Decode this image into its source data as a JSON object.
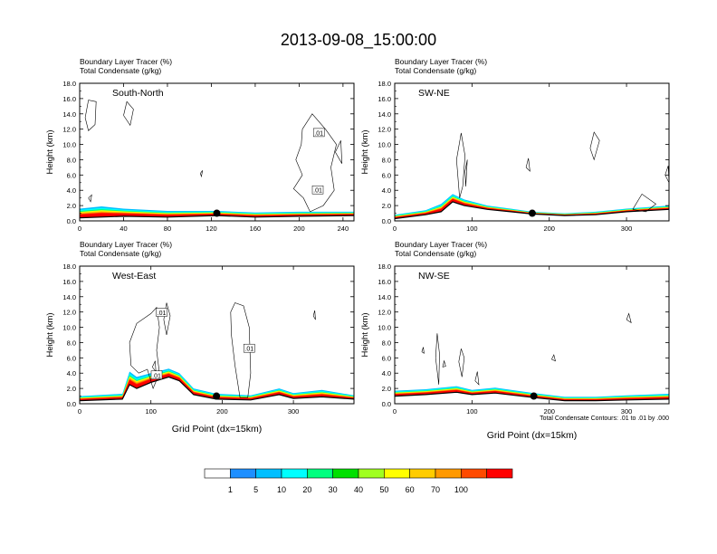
{
  "figure_title": "2013-09-08_15:00:00",
  "footnote": "Total Condensate Contours: .01 to .01 by .000",
  "colorbar": {
    "labels": [
      "1",
      "5",
      "10",
      "20",
      "30",
      "40",
      "50",
      "60",
      "70",
      "100"
    ],
    "colors": [
      "#ffffff",
      "#1e8fff",
      "#00bfff",
      "#00ffff",
      "#00ff7f",
      "#00e000",
      "#a0ff20",
      "#ffff00",
      "#ffcc00",
      "#ff9900",
      "#ff4a00",
      "#ff0000"
    ]
  },
  "chart_data": [
    {
      "type": "contour",
      "panel_label": "South-North",
      "title_line1": "Boundary Layer Tracer   (%)",
      "title_line2": "Total Condensate   (g/kg)",
      "ylabel": "Height (km)",
      "xlabel": "",
      "xlim": [
        0,
        250
      ],
      "ylim": [
        0,
        18
      ],
      "xticks": [
        0,
        40,
        80,
        120,
        160,
        200,
        240
      ],
      "xticklabels": [
        "0",
        "40",
        "80",
        "120",
        "160",
        "200",
        "240"
      ],
      "yticks": [
        0,
        2,
        4,
        6,
        8,
        10,
        12,
        14,
        16,
        18
      ],
      "yticklabels": [
        "0.0",
        "2.0",
        "4.0",
        "6.0",
        "8.0",
        "10.0",
        "12.0",
        "14.0",
        "16.0",
        "18.0"
      ],
      "marker": [
        125,
        1.0
      ],
      "contour_labels": [
        {
          "text": ".01",
          "x": 218,
          "y": 11.5
        },
        {
          "text": ".01",
          "x": 217,
          "y": 4.0
        }
      ],
      "terrain": [
        [
          0,
          0.4
        ],
        [
          40,
          0.6
        ],
        [
          80,
          0.5
        ],
        [
          125,
          0.7
        ],
        [
          160,
          0.5
        ],
        [
          200,
          0.6
        ],
        [
          250,
          0.7
        ]
      ],
      "tracer_top": [
        [
          0,
          1.6
        ],
        [
          20,
          1.9
        ],
        [
          40,
          1.6
        ],
        [
          80,
          1.3
        ],
        [
          125,
          1.3
        ],
        [
          160,
          1.1
        ],
        [
          200,
          1.2
        ],
        [
          250,
          1.2
        ]
      ],
      "condensate_contours": [
        [
          [
            5,
            13.5
          ],
          [
            8,
            15.8
          ],
          [
            15,
            15.6
          ],
          [
            14,
            12.6
          ],
          [
            8,
            11.8
          ],
          [
            5,
            13.5
          ]
        ],
        [
          [
            40,
            13.8
          ],
          [
            43,
            15.6
          ],
          [
            49,
            14.6
          ],
          [
            46,
            12.5
          ],
          [
            40,
            13.8
          ]
        ],
        [
          [
            203,
            12.0
          ],
          [
            212,
            14.0
          ],
          [
            224,
            12.0
          ],
          [
            234,
            10.0
          ],
          [
            229,
            7.0
          ],
          [
            232,
            4.0
          ],
          [
            222,
            2.0
          ],
          [
            210,
            1.2
          ],
          [
            204,
            3.0
          ],
          [
            195,
            4.2
          ],
          [
            203,
            6.0
          ],
          [
            197,
            8.0
          ],
          [
            202,
            10.0
          ],
          [
            203,
            12.0
          ]
        ],
        [
          [
            233,
            9.0
          ],
          [
            238,
            10.5
          ],
          [
            239,
            7.5
          ],
          [
            233,
            9.0
          ]
        ],
        [
          [
            110,
            6.2
          ],
          [
            112,
            6.6
          ],
          [
            111,
            5.8
          ],
          [
            110,
            6.2
          ]
        ],
        [
          [
            8,
            3.0
          ],
          [
            11,
            3.4
          ],
          [
            10,
            2.5
          ],
          [
            8,
            3.0
          ]
        ]
      ]
    },
    {
      "type": "contour",
      "panel_label": "SW-NE",
      "title_line1": "Boundary Layer Tracer   (%)",
      "title_line2": "Total Condensate   (g/kg)",
      "ylabel": "Height (km)",
      "xlabel": "",
      "xlim": [
        0,
        355
      ],
      "ylim": [
        0,
        18
      ],
      "xticks": [
        0,
        100,
        200,
        300
      ],
      "xticklabels": [
        "0",
        "100",
        "200",
        "300"
      ],
      "yticks": [
        0,
        2,
        4,
        6,
        8,
        10,
        12,
        14,
        16,
        18
      ],
      "yticklabels": [
        "0.0",
        "2.0",
        "4.0",
        "6.0",
        "8.0",
        "10.0",
        "12.0",
        "14.0",
        "16.0",
        "18.0"
      ],
      "marker": [
        178,
        1.0
      ],
      "contour_labels": [],
      "terrain": [
        [
          0,
          0.3
        ],
        [
          40,
          0.8
        ],
        [
          60,
          1.2
        ],
        [
          75,
          2.5
        ],
        [
          90,
          2.0
        ],
        [
          120,
          1.5
        ],
        [
          150,
          1.2
        ],
        [
          178,
          0.9
        ],
        [
          220,
          0.7
        ],
        [
          260,
          0.8
        ],
        [
          300,
          1.2
        ],
        [
          355,
          1.5
        ]
      ],
      "tracer_top": [
        [
          0,
          0.8
        ],
        [
          40,
          1.4
        ],
        [
          60,
          2.2
        ],
        [
          75,
          3.5
        ],
        [
          90,
          2.8
        ],
        [
          120,
          2.0
        ],
        [
          150,
          1.6
        ],
        [
          178,
          1.2
        ],
        [
          220,
          1.0
        ],
        [
          260,
          1.2
        ],
        [
          300,
          1.6
        ],
        [
          355,
          2.0
        ]
      ],
      "condensate_contours": [
        [
          [
            80,
            8.0
          ],
          [
            86,
            11.5
          ],
          [
            91,
            8.5
          ],
          [
            88,
            4.5
          ],
          [
            84,
            3.0
          ],
          [
            80,
            8.0
          ]
        ],
        [
          [
            91,
            6.5
          ],
          [
            94,
            8.0
          ],
          [
            92,
            4.5
          ],
          [
            91,
            6.5
          ]
        ],
        [
          [
            170,
            7.0
          ],
          [
            173,
            8.2
          ],
          [
            175,
            6.5
          ],
          [
            170,
            7.0
          ]
        ],
        [
          [
            253,
            9.5
          ],
          [
            258,
            11.6
          ],
          [
            265,
            10.5
          ],
          [
            258,
            8.0
          ],
          [
            253,
            9.5
          ]
        ],
        [
          [
            308,
            1.5
          ],
          [
            320,
            3.5
          ],
          [
            338,
            2.2
          ],
          [
            325,
            1.2
          ],
          [
            308,
            1.5
          ]
        ],
        [
          [
            350,
            6.0
          ],
          [
            354,
            7.2
          ],
          [
            355,
            5.0
          ],
          [
            350,
            6.0
          ]
        ]
      ]
    },
    {
      "type": "contour",
      "panel_label": "West-East",
      "title_line1": "Boundary Layer Tracer   (%)",
      "title_line2": "Total Condensate   (g/kg)",
      "ylabel": "Height (km)",
      "xlabel": "Grid Point (dx=15km)",
      "xlim": [
        0,
        385
      ],
      "ylim": [
        0,
        18
      ],
      "xticks": [
        0,
        100,
        200,
        300
      ],
      "xticklabels": [
        "0",
        "100",
        "200",
        "300"
      ],
      "yticks": [
        0,
        2,
        4,
        6,
        8,
        10,
        12,
        14,
        16,
        18
      ],
      "yticklabels": [
        "0.0",
        "2.0",
        "4.0",
        "6.0",
        "8.0",
        "10.0",
        "12.0",
        "14.0",
        "16.0",
        "18.0"
      ],
      "marker": [
        192,
        1.0
      ],
      "contour_labels": [
        {
          "text": ".01",
          "x": 115,
          "y": 11.9
        },
        {
          "text": ".01",
          "x": 238,
          "y": 7.2
        },
        {
          "text": ".01",
          "x": 108,
          "y": 3.7
        }
      ],
      "terrain": [
        [
          0,
          0.4
        ],
        [
          60,
          0.6
        ],
        [
          70,
          2.5
        ],
        [
          80,
          2.0
        ],
        [
          100,
          2.8
        ],
        [
          125,
          3.5
        ],
        [
          140,
          3.0
        ],
        [
          160,
          1.2
        ],
        [
          192,
          0.6
        ],
        [
          240,
          0.5
        ],
        [
          280,
          1.2
        ],
        [
          300,
          0.7
        ],
        [
          340,
          0.9
        ],
        [
          385,
          0.6
        ]
      ],
      "tracer_top": [
        [
          0,
          1.0
        ],
        [
          60,
          1.3
        ],
        [
          70,
          4.2
        ],
        [
          80,
          3.5
        ],
        [
          100,
          4.0
        ],
        [
          125,
          4.6
        ],
        [
          140,
          4.0
        ],
        [
          160,
          2.0
        ],
        [
          192,
          1.3
        ],
        [
          240,
          1.1
        ],
        [
          280,
          2.0
        ],
        [
          300,
          1.4
        ],
        [
          340,
          1.8
        ],
        [
          385,
          1.1
        ]
      ],
      "condensate_contours": [
        [
          [
            70,
            8.0
          ],
          [
            80,
            10.5
          ],
          [
            100,
            11.8
          ],
          [
            108,
            12.6
          ],
          [
            112,
            10.0
          ],
          [
            108,
            7.0
          ],
          [
            112,
            4.0
          ],
          [
            103,
            2.0
          ],
          [
            95,
            4.5
          ],
          [
            83,
            4.0
          ],
          [
            72,
            5.0
          ],
          [
            70,
            8.0
          ]
        ],
        [
          [
            118,
            11.0
          ],
          [
            122,
            13.2
          ],
          [
            127,
            11.5
          ],
          [
            122,
            9.0
          ],
          [
            118,
            11.0
          ]
        ],
        [
          [
            212,
            12.0
          ],
          [
            218,
            13.2
          ],
          [
            230,
            12.8
          ],
          [
            238,
            10.0
          ],
          [
            240,
            4.0
          ],
          [
            236,
            0.8
          ],
          [
            225,
            0.8
          ],
          [
            218,
            5.0
          ],
          [
            213,
            9.0
          ],
          [
            212,
            12.0
          ]
        ],
        [
          [
            328,
            11.5
          ],
          [
            330,
            12.2
          ],
          [
            331,
            11.0
          ],
          [
            328,
            11.5
          ]
        ],
        [
          [
            102,
            4.8
          ],
          [
            106,
            5.6
          ],
          [
            107,
            4.2
          ],
          [
            102,
            4.8
          ]
        ]
      ]
    },
    {
      "type": "contour",
      "panel_label": "NW-SE",
      "title_line1": "Boundary Layer Tracer   (%)",
      "title_line2": "Total Condensate   (g/kg)",
      "ylabel": "Height (km)",
      "xlabel": "Grid Point (dx=15km)",
      "xlim": [
        0,
        355
      ],
      "ylim": [
        0,
        18
      ],
      "xticks": [
        0,
        100,
        200,
        300
      ],
      "xticklabels": [
        "0",
        "100",
        "200",
        "300"
      ],
      "yticks": [
        0,
        2,
        4,
        6,
        8,
        10,
        12,
        14,
        16,
        18
      ],
      "yticklabels": [
        "0.0",
        "2.0",
        "4.0",
        "6.0",
        "8.0",
        "10.0",
        "12.0",
        "14.0",
        "16.0",
        "18.0"
      ],
      "marker": [
        180,
        1.0
      ],
      "contour_labels": [],
      "terrain": [
        [
          0,
          1.0
        ],
        [
          40,
          1.2
        ],
        [
          80,
          1.5
        ],
        [
          100,
          1.2
        ],
        [
          130,
          1.4
        ],
        [
          180,
          0.8
        ],
        [
          220,
          0.4
        ],
        [
          260,
          0.4
        ],
        [
          300,
          0.5
        ],
        [
          355,
          0.6
        ]
      ],
      "tracer_top": [
        [
          0,
          1.7
        ],
        [
          40,
          1.9
        ],
        [
          80,
          2.3
        ],
        [
          100,
          1.8
        ],
        [
          130,
          2.1
        ],
        [
          180,
          1.4
        ],
        [
          220,
          0.9
        ],
        [
          260,
          0.9
        ],
        [
          300,
          1.1
        ],
        [
          355,
          1.3
        ]
      ],
      "condensate_contours": [
        [
          [
            53,
            6.0
          ],
          [
            55,
            9.2
          ],
          [
            58,
            6.5
          ],
          [
            57,
            2.5
          ],
          [
            53,
            6.0
          ]
        ],
        [
          [
            83,
            5.5
          ],
          [
            86,
            7.2
          ],
          [
            90,
            6.0
          ],
          [
            87,
            3.5
          ],
          [
            83,
            5.5
          ]
        ],
        [
          [
            35,
            6.8
          ],
          [
            37,
            7.4
          ],
          [
            38,
            6.6
          ],
          [
            35,
            6.8
          ]
        ],
        [
          [
            62,
            4.8
          ],
          [
            64,
            5.6
          ],
          [
            66,
            4.9
          ],
          [
            62,
            4.8
          ]
        ],
        [
          [
            203,
            5.8
          ],
          [
            206,
            6.4
          ],
          [
            208,
            5.6
          ],
          [
            203,
            5.8
          ]
        ],
        [
          [
            300,
            11.0
          ],
          [
            303,
            11.8
          ],
          [
            306,
            10.6
          ],
          [
            300,
            11.0
          ]
        ],
        [
          [
            104,
            3.0
          ],
          [
            107,
            4.2
          ],
          [
            109,
            2.5
          ],
          [
            104,
            3.0
          ]
        ]
      ]
    }
  ]
}
